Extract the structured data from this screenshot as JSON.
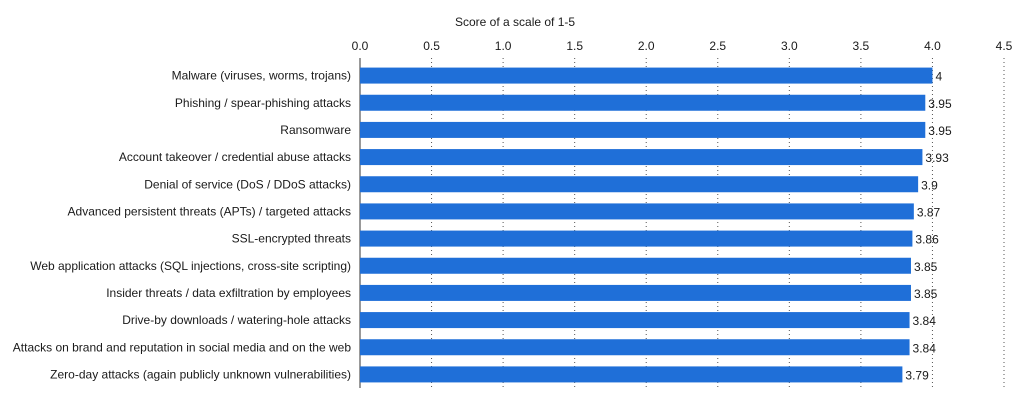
{
  "chart_data": {
    "type": "bar",
    "orientation": "horizontal",
    "axis_title": "Score of a scale of 1-5",
    "xlim": [
      0,
      4.5
    ],
    "ticks": [
      "0.0",
      "0.5",
      "1.0",
      "1.5",
      "2.0",
      "2.5",
      "3.0",
      "3.5",
      "4.0",
      "4.5"
    ],
    "grid": "vertical dotted",
    "bar_color": "#1f6fd8",
    "categories": [
      "Malware (viruses, worms, trojans)",
      "Phishing / spear-phishing attacks",
      "Ransomware",
      "Account takeover / credential abuse attacks",
      "Denial of service (DoS / DDoS attacks)",
      "Advanced persistent threats (APTs) / targeted attacks",
      "SSL-encrypted threats",
      "Web application attacks (SQL injections, cross-site scripting)",
      "Insider threats / data exfiltration by employees",
      "Drive-by downloads / watering-hole attacks",
      "Attacks on brand and reputation in social media and on the web",
      "Zero-day attacks (again publicly unknown vulnerabilities)"
    ],
    "values": [
      4,
      3.95,
      3.95,
      3.93,
      3.9,
      3.87,
      3.86,
      3.85,
      3.85,
      3.84,
      3.84,
      3.79
    ],
    "value_labels": [
      "4",
      "3.95",
      "3.95",
      "3.93",
      "3.9",
      "3.87",
      "3.86",
      "3.85",
      "3.85",
      "3.84",
      "3.84",
      "3.79"
    ]
  }
}
